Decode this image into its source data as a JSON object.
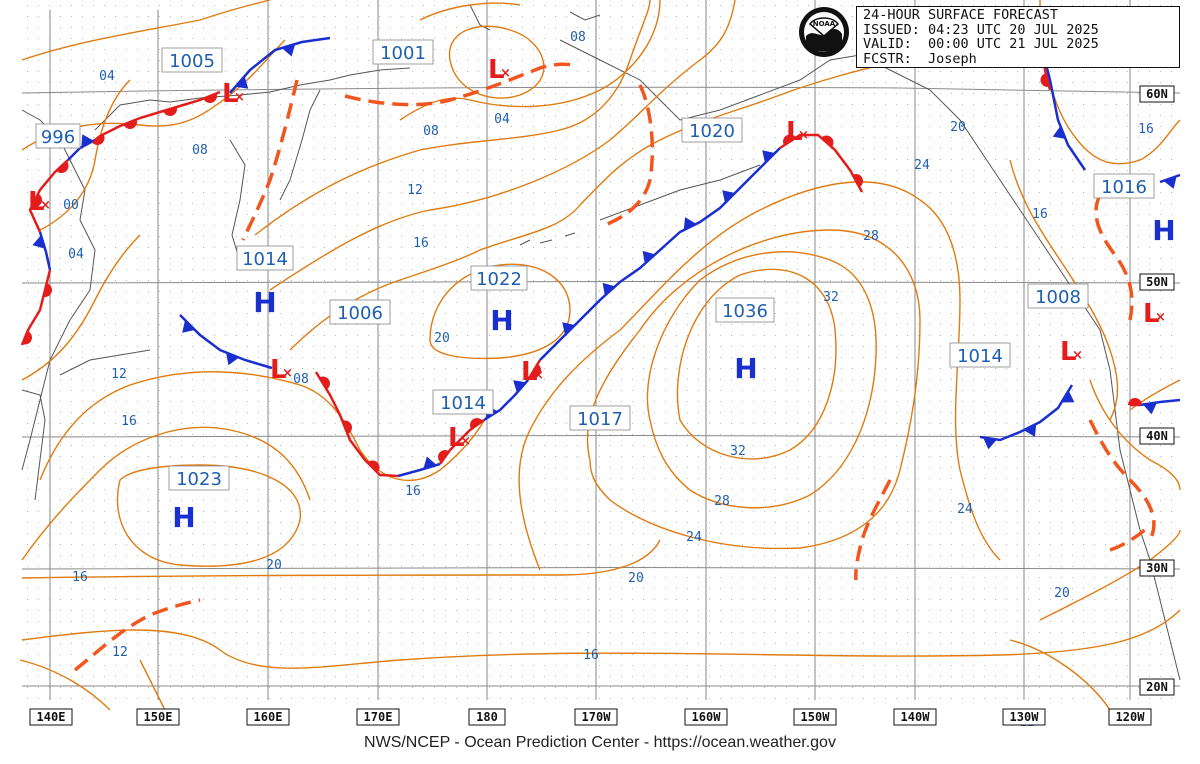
{
  "map": {
    "title": "24-HOUR SURFACE FORECAST",
    "issued": "ISSUED: 04:23 UTC 20 JUL 2025",
    "valid": "VALID:  00:00 UTC 21 JUL 2025",
    "forecaster": "FCSTR:  Joseph",
    "logo_text": "NOAA",
    "footer": "NWS/NCEP - Ocean Prediction Center - https://ocean.weather.gov",
    "colors": {
      "isobar": "#e07b10",
      "isobar_label": "#1f5fb0",
      "cold_front": "#1a2fd0",
      "warm_front": "#e31c1c",
      "trough": "#f0561e",
      "high": "#1a2fd0",
      "low": "#e31c1c",
      "grid": "#8a8a8a",
      "coast": "#555555"
    },
    "lon_labels": [
      "140E",
      "150E",
      "160E",
      "170E",
      "180",
      "170W",
      "160W",
      "150W",
      "140W",
      "130W",
      "120W"
    ],
    "lat_labels": [
      "60N",
      "50N",
      "40N",
      "30N",
      "20N"
    ],
    "pressure_centers": [
      {
        "type": "H",
        "value": "1014"
      },
      {
        "type": "H",
        "value": "1022"
      },
      {
        "type": "H",
        "value": "1036"
      },
      {
        "type": "H",
        "value": "1023"
      },
      {
        "type": "H",
        "value": "1016"
      },
      {
        "type": "L",
        "value": "996"
      },
      {
        "type": "L",
        "value": "1005"
      },
      {
        "type": "L",
        "value": "1001"
      },
      {
        "type": "L",
        "value": "1020"
      },
      {
        "type": "L",
        "value": "1006"
      },
      {
        "type": "L",
        "value": "1014"
      },
      {
        "type": "L",
        "value": "1017"
      },
      {
        "type": "L",
        "value": "1008"
      },
      {
        "type": "L",
        "value": "1014"
      }
    ],
    "isobar_labels": [
      "04",
      "08",
      "00",
      "04",
      "08",
      "04",
      "08",
      "12",
      "16",
      "20",
      "12",
      "16",
      "08",
      "16",
      "20",
      "16",
      "12",
      "16",
      "20",
      "24",
      "28",
      "32",
      "32",
      "28",
      "24",
      "20",
      "24",
      "20",
      "16",
      "16",
      "12"
    ]
  }
}
